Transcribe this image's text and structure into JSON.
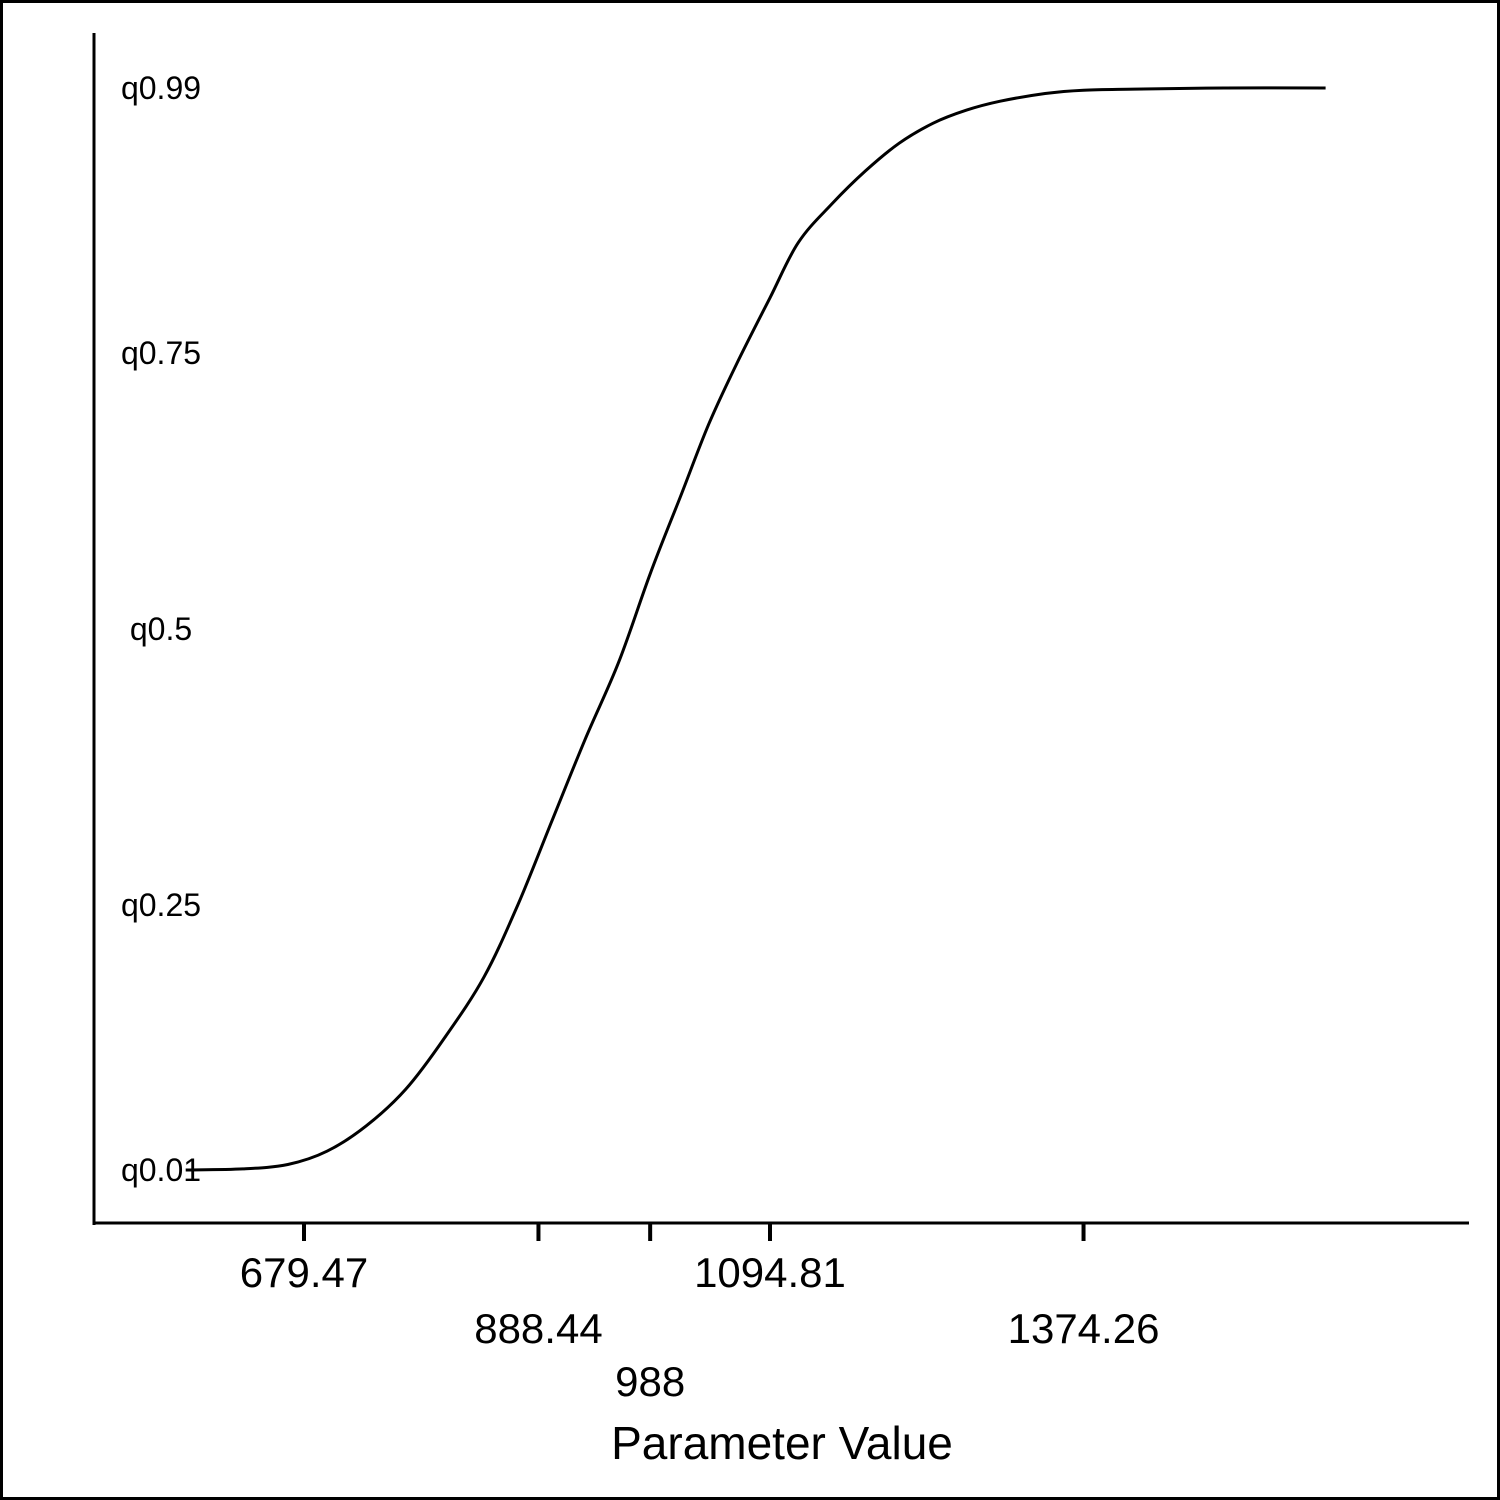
{
  "chart_data": {
    "type": "line",
    "title": "",
    "xlabel": "Parameter Value",
    "ylabel": "",
    "xlim": [
      520,
      1640
    ],
    "ylim": [
      0,
      1
    ],
    "x_ticks": [
      679.47,
      888.44,
      988,
      1094.81,
      1374.26
    ],
    "x_tick_labels": [
      "679.47",
      "888.44",
      "988",
      "1094.81",
      "1374.26"
    ],
    "y_ticks": [
      0.01,
      0.25,
      0.5,
      0.75,
      0.99
    ],
    "y_tick_labels": [
      "q0.01",
      "q0.25",
      "q0.5",
      "q0.75",
      "q0.99"
    ],
    "grid": false,
    "series": [
      {
        "name": "",
        "x": [
          574,
          625,
          665,
          700,
          735,
          770,
          805,
          840,
          870,
          900,
          930,
          960,
          988,
          1015,
          1040,
          1065,
          1094.81,
          1120,
          1150,
          1180,
          1210,
          1240,
          1270,
          1300,
          1340,
          1374.26,
          1420,
          1500,
          1590
        ],
        "y": [
          0.01,
          0.011,
          0.015,
          0.027,
          0.05,
          0.083,
          0.13,
          0.185,
          0.25,
          0.325,
          0.4,
          0.47,
          0.55,
          0.62,
          0.685,
          0.74,
          0.8,
          0.85,
          0.885,
          0.915,
          0.94,
          0.958,
          0.97,
          0.978,
          0.985,
          0.988,
          0.989,
          0.99,
          0.99
        ]
      }
    ]
  }
}
